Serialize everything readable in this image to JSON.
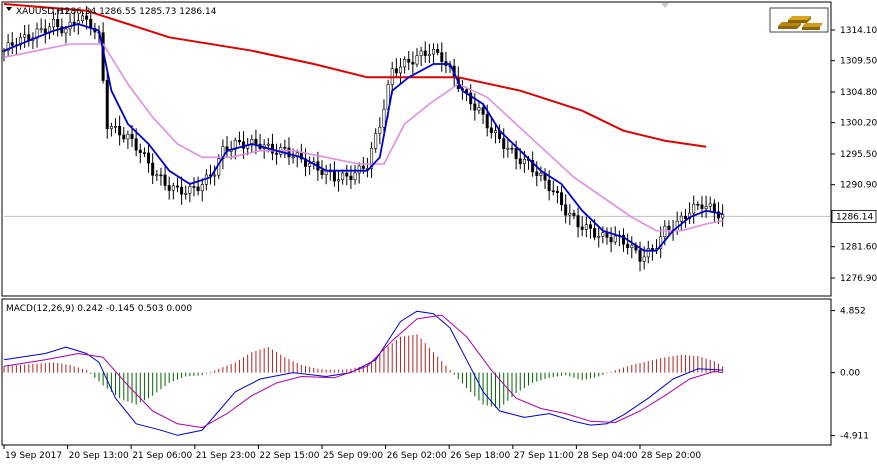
{
  "main_chart": {
    "symbol": "XAUUSD,H1",
    "ohlc": "1286.34 1286.55 1285.73 1286.14",
    "current_price": 1286.14,
    "current_price_label": "1286.14",
    "y_ticks": [
      "1314.10",
      "1309.50",
      "1304.80",
      "1300.20",
      "1295.50",
      "1290.90",
      "1281.60",
      "1276.90"
    ],
    "logo_icon": "gold-bars-icon"
  },
  "macd_panel": {
    "title": "MACD(12,26,9) 0.242 -0.145 0.503 0.000",
    "y_ticks": [
      "4.852",
      "0.00",
      "-4.911"
    ]
  },
  "x_ticks": [
    "19 Sep 2017",
    "20 Sep 13:00",
    "21 Sep 06:00",
    "21 Sep 23:00",
    "22 Sep 15:00",
    "25 Sep 09:00",
    "26 Sep 02:00",
    "26 Sep 18:00",
    "27 Sep 11:00",
    "28 Sep 04:00",
    "28 Sep 20:00"
  ],
  "colors": {
    "candle": "#000000",
    "ma_fast": "#0000cc",
    "ma_mid": "#e08ee0",
    "ma_slow": "#dd0000",
    "macd_line": "#0000cc",
    "signal_line": "#aa00aa",
    "hist_pos": "#b22222",
    "hist_neg": "#006400"
  },
  "chart_data": {
    "type": "candlestick",
    "ylim": [
      1274.5,
      1318.0
    ],
    "price_points": [
      [
        0,
        1311
      ],
      [
        3,
        1312.5
      ],
      [
        6,
        1313
      ],
      [
        9,
        1314
      ],
      [
        12,
        1315
      ],
      [
        15,
        1314
      ],
      [
        18,
        1316
      ],
      [
        21,
        1315
      ],
      [
        23,
        1313
      ],
      [
        25,
        1300
      ],
      [
        27,
        1299
      ],
      [
        30,
        1298
      ],
      [
        33,
        1296
      ],
      [
        36,
        1293
      ],
      [
        39,
        1291
      ],
      [
        42,
        1290
      ],
      [
        45,
        1290
      ],
      [
        48,
        1291
      ],
      [
        51,
        1293
      ],
      [
        53,
        1296
      ],
      [
        56,
        1297
      ],
      [
        59,
        1297
      ],
      [
        62,
        1297
      ],
      [
        65,
        1296
      ],
      [
        68,
        1296
      ],
      [
        71,
        1295
      ],
      [
        74,
        1294
      ],
      [
        77,
        1293
      ],
      [
        80,
        1292
      ],
      [
        83,
        1292
      ],
      [
        86,
        1293
      ],
      [
        88,
        1294
      ],
      [
        91,
        1300
      ],
      [
        94,
        1308
      ],
      [
        97,
        1309
      ],
      [
        100,
        1310
      ],
      [
        103,
        1311
      ],
      [
        106,
        1310
      ],
      [
        109,
        1307
      ],
      [
        112,
        1304
      ],
      [
        115,
        1302
      ],
      [
        118,
        1299
      ],
      [
        121,
        1297
      ],
      [
        124,
        1295
      ],
      [
        127,
        1294
      ],
      [
        130,
        1292
      ],
      [
        133,
        1290
      ],
      [
        136,
        1287
      ],
      [
        139,
        1285
      ],
      [
        142,
        1284
      ],
      [
        145,
        1283
      ],
      [
        148,
        1283
      ],
      [
        151,
        1282
      ],
      [
        154,
        1280
      ],
      [
        157,
        1281
      ],
      [
        160,
        1284
      ],
      [
        163,
        1285
      ],
      [
        166,
        1287
      ],
      [
        169,
        1288
      ],
      [
        172,
        1287
      ],
      [
        174,
        1286.1
      ]
    ],
    "ma_fast_points": [
      [
        0,
        1311
      ],
      [
        6,
        1312.5
      ],
      [
        12,
        1314
      ],
      [
        18,
        1315
      ],
      [
        23,
        1314
      ],
      [
        26,
        1305
      ],
      [
        30,
        1300
      ],
      [
        35,
        1297
      ],
      [
        40,
        1293
      ],
      [
        45,
        1291
      ],
      [
        50,
        1292
      ],
      [
        54,
        1296
      ],
      [
        60,
        1297
      ],
      [
        66,
        1296
      ],
      [
        72,
        1295
      ],
      [
        78,
        1293
      ],
      [
        84,
        1293
      ],
      [
        88,
        1293
      ],
      [
        91,
        1295
      ],
      [
        94,
        1305
      ],
      [
        98,
        1307
      ],
      [
        104,
        1309
      ],
      [
        108,
        1309
      ],
      [
        111,
        1305
      ],
      [
        116,
        1303
      ],
      [
        120,
        1299
      ],
      [
        125,
        1296
      ],
      [
        130,
        1293
      ],
      [
        135,
        1291
      ],
      [
        140,
        1287
      ],
      [
        145,
        1284
      ],
      [
        150,
        1283
      ],
      [
        155,
        1281
      ],
      [
        158,
        1281
      ],
      [
        162,
        1284
      ],
      [
        166,
        1286
      ],
      [
        170,
        1287
      ],
      [
        174,
        1286.5
      ]
    ],
    "ma_mid_points": [
      [
        0,
        1310
      ],
      [
        8,
        1311
      ],
      [
        16,
        1312
      ],
      [
        24,
        1312
      ],
      [
        30,
        1306
      ],
      [
        36,
        1301
      ],
      [
        42,
        1297
      ],
      [
        48,
        1295
      ],
      [
        55,
        1295
      ],
      [
        62,
        1296
      ],
      [
        70,
        1296
      ],
      [
        78,
        1295
      ],
      [
        86,
        1294
      ],
      [
        92,
        1294
      ],
      [
        97,
        1300
      ],
      [
        103,
        1303
      ],
      [
        110,
        1306
      ],
      [
        117,
        1304
      ],
      [
        124,
        1300
      ],
      [
        131,
        1296
      ],
      [
        138,
        1292
      ],
      [
        145,
        1289
      ],
      [
        152,
        1286
      ],
      [
        158,
        1284
      ],
      [
        164,
        1284
      ],
      [
        170,
        1285
      ],
      [
        174,
        1285.5
      ]
    ],
    "ma_slow_points": [
      [
        0,
        1318
      ],
      [
        20,
        1317
      ],
      [
        40,
        1313
      ],
      [
        60,
        1311
      ],
      [
        75,
        1309
      ],
      [
        88,
        1307
      ],
      [
        100,
        1307
      ],
      [
        110,
        1307
      ],
      [
        125,
        1305
      ],
      [
        140,
        1302
      ],
      [
        150,
        1299
      ],
      [
        160,
        1297.5
      ],
      [
        170,
        1296.6
      ]
    ],
    "macd_ylim": [
      -5.5,
      5.6
    ],
    "macd_line": [
      [
        0,
        1.0
      ],
      [
        10,
        1.5
      ],
      [
        15,
        2.0
      ],
      [
        20,
        1.5
      ],
      [
        23,
        0.8
      ],
      [
        27,
        -2
      ],
      [
        32,
        -4
      ],
      [
        38,
        -4.5
      ],
      [
        42,
        -4.9
      ],
      [
        48,
        -4.5
      ],
      [
        52,
        -3
      ],
      [
        56,
        -1.5
      ],
      [
        62,
        -0.5
      ],
      [
        70,
        0
      ],
      [
        78,
        -0.3
      ],
      [
        84,
        0
      ],
      [
        90,
        1
      ],
      [
        96,
        4
      ],
      [
        100,
        4.8
      ],
      [
        104,
        4.6
      ],
      [
        108,
        3.5
      ],
      [
        112,
        1
      ],
      [
        116,
        -1.5
      ],
      [
        120,
        -3
      ],
      [
        126,
        -3.5
      ],
      [
        132,
        -3.2
      ],
      [
        138,
        -3.8
      ],
      [
        142,
        -4.1
      ],
      [
        146,
        -4
      ],
      [
        150,
        -3.3
      ],
      [
        156,
        -2
      ],
      [
        162,
        -0.5
      ],
      [
        168,
        0.3
      ],
      [
        174,
        0.2
      ]
    ],
    "signal_line": [
      [
        0,
        0.5
      ],
      [
        10,
        1.0
      ],
      [
        18,
        1.5
      ],
      [
        24,
        1.2
      ],
      [
        30,
        -1
      ],
      [
        36,
        -3
      ],
      [
        42,
        -4
      ],
      [
        48,
        -4.3
      ],
      [
        54,
        -3.2
      ],
      [
        60,
        -1.8
      ],
      [
        66,
        -0.8
      ],
      [
        72,
        -0.3
      ],
      [
        80,
        -0.4
      ],
      [
        88,
        0.5
      ],
      [
        94,
        2.5
      ],
      [
        100,
        4.2
      ],
      [
        106,
        4.5
      ],
      [
        112,
        2.8
      ],
      [
        118,
        0.2
      ],
      [
        124,
        -2
      ],
      [
        130,
        -2.8
      ],
      [
        136,
        -3.2
      ],
      [
        142,
        -3.8
      ],
      [
        148,
        -3.9
      ],
      [
        154,
        -3
      ],
      [
        160,
        -1.8
      ],
      [
        166,
        -0.5
      ],
      [
        172,
        0.1
      ],
      [
        174,
        0.0
      ]
    ],
    "histogram": [
      [
        0,
        0.5
      ],
      [
        4,
        0.6
      ],
      [
        8,
        0.7
      ],
      [
        12,
        0.8
      ],
      [
        16,
        0.6
      ],
      [
        20,
        0.2
      ],
      [
        24,
        -1
      ],
      [
        28,
        -2
      ],
      [
        32,
        -2.5
      ],
      [
        36,
        -1.8
      ],
      [
        40,
        -0.8
      ],
      [
        44,
        -0.3
      ],
      [
        48,
        -0.2
      ],
      [
        52,
        0.3
      ],
      [
        56,
        0.8
      ],
      [
        60,
        1.6
      ],
      [
        64,
        2.0
      ],
      [
        68,
        1.2
      ],
      [
        72,
        0.6
      ],
      [
        76,
        0.3
      ],
      [
        80,
        0.2
      ],
      [
        84,
        0.3
      ],
      [
        88,
        0.6
      ],
      [
        92,
        1.8
      ],
      [
        96,
        2.8
      ],
      [
        100,
        3.0
      ],
      [
        104,
        1.6
      ],
      [
        108,
        0.2
      ],
      [
        112,
        -1.2
      ],
      [
        116,
        -2.5
      ],
      [
        120,
        -2.8
      ],
      [
        124,
        -1.6
      ],
      [
        128,
        -0.8
      ],
      [
        132,
        -0.4
      ],
      [
        136,
        -0.2
      ],
      [
        140,
        -0.6
      ],
      [
        144,
        -0.3
      ],
      [
        148,
        0.2
      ],
      [
        152,
        0.6
      ],
      [
        156,
        0.9
      ],
      [
        160,
        1.2
      ],
      [
        164,
        1.4
      ],
      [
        168,
        1.3
      ],
      [
        172,
        0.9
      ],
      [
        174,
        0.5
      ]
    ]
  }
}
